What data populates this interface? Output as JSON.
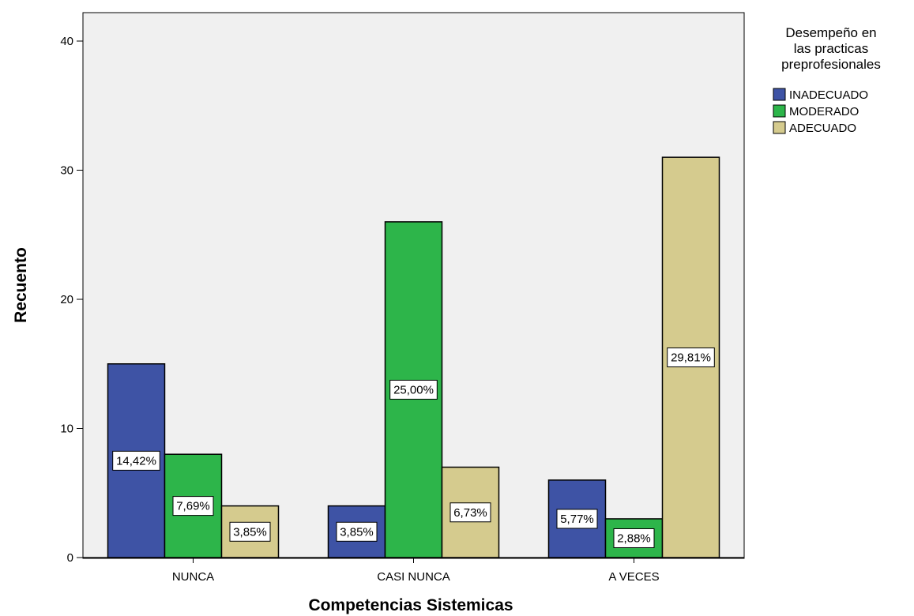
{
  "chart_data": {
    "type": "bar",
    "title": "",
    "xlabel": "Competencias Sistemicas",
    "ylabel": "Recuento",
    "ylim": [
      0,
      41
    ],
    "yticks": [
      0,
      10,
      20,
      30,
      40
    ],
    "grid": false,
    "legend_position": "right",
    "legend_title": [
      "Desempeño en",
      "las practicas",
      "preprofesionales"
    ],
    "categories": [
      "NUNCA",
      "CASI NUNCA",
      "A VECES"
    ],
    "series": [
      {
        "name": "INADECUADO",
        "color": "#3e53a5",
        "values": [
          15,
          4,
          6
        ],
        "labels": [
          "14,42%",
          "3,85%",
          "5,77%"
        ]
      },
      {
        "name": "MODERADO",
        "color": "#2db54a",
        "values": [
          8,
          26,
          3
        ],
        "labels": [
          "7,69%",
          "25,00%",
          "2,88%"
        ]
      },
      {
        "name": "ADECUADO",
        "color": "#d5cb8e",
        "values": [
          4,
          7,
          31
        ],
        "labels": [
          "3,85%",
          "6,73%",
          "29,81%"
        ]
      }
    ]
  }
}
